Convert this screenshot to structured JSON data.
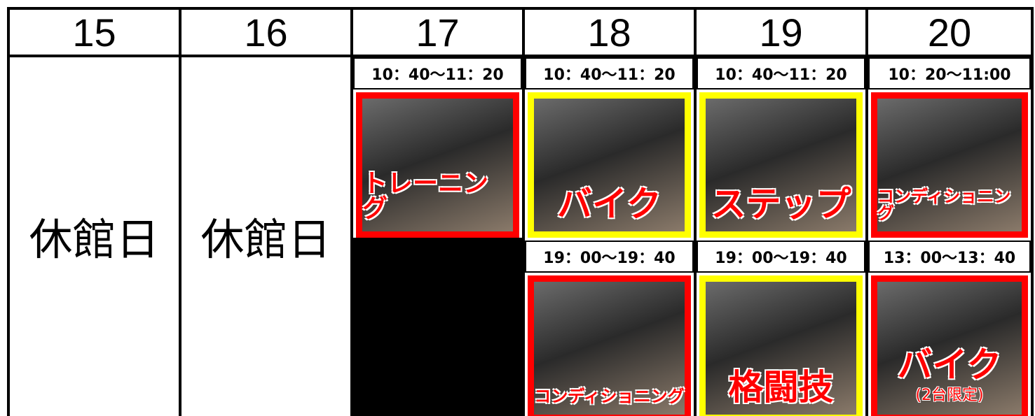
{
  "days": [
    {
      "date": "15",
      "closed": "休館日"
    },
    {
      "date": "16",
      "closed": "休館日"
    },
    {
      "date": "17",
      "sessions": [
        {
          "time": "10：40～11：20",
          "label": "トレーニング",
          "color": "#ff0000"
        }
      ]
    },
    {
      "date": "18",
      "sessions": [
        {
          "time": "10：40～11：20",
          "label": "バイク",
          "color": "#ffff00"
        },
        {
          "time": "19：00～19：40",
          "label": "コンディショニング",
          "color": "#ff0000"
        }
      ]
    },
    {
      "date": "19",
      "sessions": [
        {
          "time": "10：40～11：20",
          "label": "ステップ",
          "color": "#ffff00"
        },
        {
          "time": "19：00～19：40",
          "label": "格闘技",
          "color": "#ffff00"
        }
      ]
    },
    {
      "date": "20",
      "sessions": [
        {
          "time": "10：20～11:00",
          "label": "コンディショニング",
          "color": "#ff0000"
        },
        {
          "time": "13：00～13：40",
          "label": "バイク",
          "note": "(2台限定)",
          "color": "#ff0000"
        }
      ]
    }
  ]
}
